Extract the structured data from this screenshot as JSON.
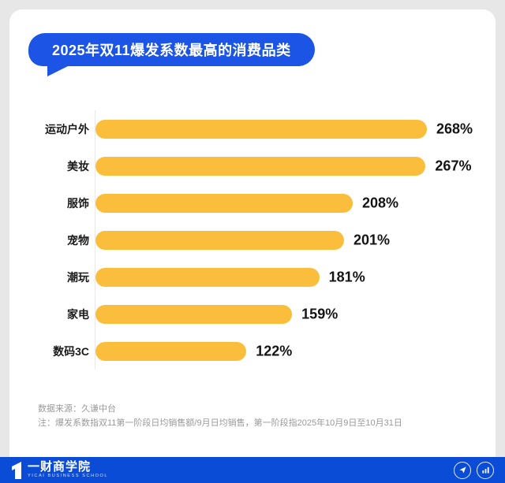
{
  "title": {
    "text": "2025年双11爆发系数最高的消费品类"
  },
  "chart_data": {
    "type": "bar",
    "orientation": "horizontal",
    "title": "2025年双11爆发系数最高的消费品类",
    "categories": [
      "运动户外",
      "美妆",
      "服饰",
      "宠物",
      "潮玩",
      "家电",
      "数码3C"
    ],
    "values": [
      268,
      267,
      208,
      201,
      181,
      159,
      122
    ],
    "value_suffix": "%",
    "xlim": [
      0,
      268
    ],
    "grid": false,
    "legend": false,
    "bar_color": "#FBBE3C"
  },
  "notes": {
    "source": "数据来源：久谦中台",
    "definition": "注：爆发系数指双11第一阶段日均销售额/9月日均销售，第一阶段指2025年10月9日至10月31日"
  },
  "footer": {
    "brand": "一财商学院",
    "brand_sub": "YICAI BUSINESS SCHOOL",
    "icons": [
      "send-icon",
      "bar-chart-icon"
    ]
  },
  "colors": {
    "bubble_blue": "#1C55E6",
    "footer_blue": "#0B4CD6",
    "bar_yellow": "#FBBE3C",
    "page_bg": "#E7E7E7",
    "value_text": "#141414",
    "note_text": "#9A9A9A"
  }
}
